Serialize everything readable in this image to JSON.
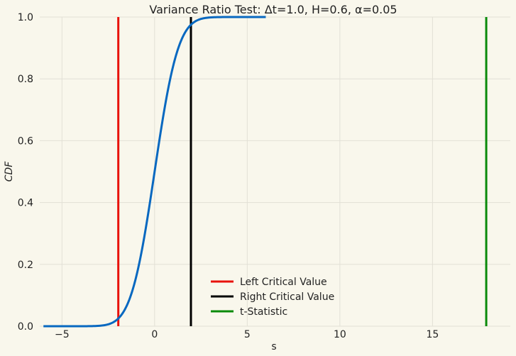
{
  "chart_data": {
    "type": "line",
    "title": "Variance Ratio Test: Δt=1.0, H=0.6, α=0.05",
    "xlabel": "s",
    "ylabel": "CDF",
    "xlim": [
      -6.2,
      19.2
    ],
    "ylim": [
      0.0,
      1.0
    ],
    "grid": true,
    "legend_position": "lower-center",
    "x_ticks": [
      -5,
      0,
      5,
      10,
      15
    ],
    "x_tick_labels": [
      "−5",
      "0",
      "5",
      "10",
      "15"
    ],
    "y_ticks": [
      0.0,
      0.2,
      0.4,
      0.6,
      0.8,
      1.0
    ],
    "y_tick_labels": [
      "0.0",
      "0.2",
      "0.4",
      "0.6",
      "0.8",
      "1.0"
    ],
    "cdf_curve": {
      "color": "#0868c0",
      "x_range": [
        -6.0,
        6.0
      ],
      "distribution": "standard normal CDF"
    },
    "series": [
      {
        "name": "Left Critical Value",
        "x": -1.96,
        "color": "#e8120c"
      },
      {
        "name": "Right Critical Value",
        "x": 1.96,
        "color": "#000000"
      },
      {
        "name": "t-Statistic",
        "x": 17.9,
        "color": "#0a8a0a"
      }
    ]
  }
}
